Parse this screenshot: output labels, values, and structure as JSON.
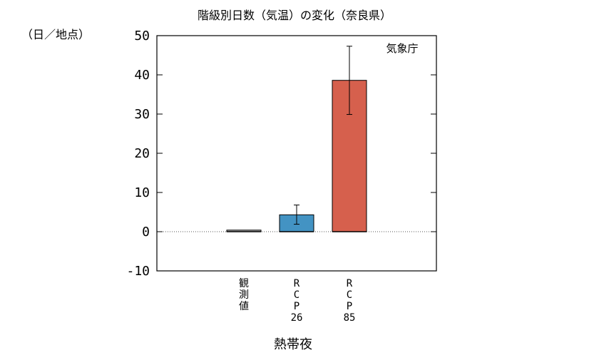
{
  "chart_data": {
    "type": "bar",
    "title": "階級別日数（気温）の変化（奈良県）",
    "ylabel": "（日／地点）",
    "xlabel": "熱帯夜",
    "annotation": "気象庁",
    "ylim": [
      -10,
      50
    ],
    "yticks": [
      "-10",
      "0",
      "10",
      "20",
      "30",
      "40",
      "50"
    ],
    "categories": [
      "観測値",
      "RCP26",
      "RCP85"
    ],
    "category_lines": [
      [
        "観",
        "測",
        "値"
      ],
      [
        "R",
        "C",
        "P",
        "26"
      ],
      [
        "R",
        "C",
        "P",
        "85"
      ]
    ],
    "values": [
      0.4,
      4.3,
      38.6
    ],
    "error_low": [
      null,
      1.9,
      29.9
    ],
    "error_high": [
      null,
      6.8,
      47.3
    ],
    "colors": [
      "#aaaaaa",
      "#4393c3",
      "#d6604d"
    ],
    "zero_line": "dotted",
    "grid": false
  }
}
